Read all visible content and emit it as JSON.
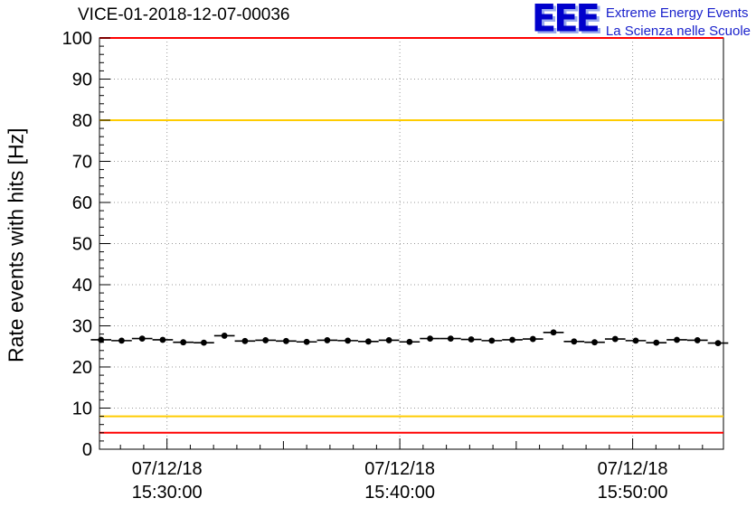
{
  "header": {
    "title": "VICE-01-2018-12-07-00036"
  },
  "logo": {
    "acronym": "EEE",
    "line1": "Extreme Energy Events",
    "line2": "La Scienza nelle Scuole",
    "color": "#0000cc"
  },
  "chart_data": {
    "type": "scatter",
    "title": "VICE-01-2018-12-07-00036",
    "xlabel": "",
    "ylabel": "Rate events with hits [Hz]",
    "ylim": [
      0,
      100
    ],
    "y_major_step": 10,
    "y_minor_step": 2,
    "grid": true,
    "xlim": [
      "15:27:06",
      "15:53:54"
    ],
    "x_ticks": [
      {
        "date": "07/12/18",
        "time": "15:30:00"
      },
      {
        "date": "07/12/18",
        "time": "15:40:00"
      },
      {
        "date": "07/12/18",
        "time": "15:50:00"
      }
    ],
    "threshold_lines": [
      {
        "y": 100,
        "color": "#ff0000"
      },
      {
        "y": 80,
        "color": "#ffcc00"
      },
      {
        "y": 8,
        "color": "#ffcc00"
      },
      {
        "y": 4,
        "color": "#ff0000"
      }
    ],
    "series": [
      {
        "name": "rate-events-with-hits",
        "marker": "circle",
        "color": "#000000",
        "x_error_minutes": 0.44,
        "points": [
          {
            "time": "15:27:10",
            "rate": 26.6
          },
          {
            "time": "15:28:03",
            "rate": 26.4
          },
          {
            "time": "15:28:56",
            "rate": 26.9
          },
          {
            "time": "15:29:49",
            "rate": 26.6
          },
          {
            "time": "15:30:42",
            "rate": 26.0
          },
          {
            "time": "15:31:35",
            "rate": 25.9
          },
          {
            "time": "15:32:28",
            "rate": 27.6
          },
          {
            "time": "15:33:21",
            "rate": 26.3
          },
          {
            "time": "15:34:14",
            "rate": 26.5
          },
          {
            "time": "15:35:07",
            "rate": 26.3
          },
          {
            "time": "15:36:00",
            "rate": 26.1
          },
          {
            "time": "15:36:53",
            "rate": 26.5
          },
          {
            "time": "15:37:46",
            "rate": 26.4
          },
          {
            "time": "15:38:39",
            "rate": 26.2
          },
          {
            "time": "15:39:32",
            "rate": 26.5
          },
          {
            "time": "15:40:25",
            "rate": 26.1
          },
          {
            "time": "15:41:18",
            "rate": 26.9
          },
          {
            "time": "15:42:11",
            "rate": 26.9
          },
          {
            "time": "15:43:04",
            "rate": 26.7
          },
          {
            "time": "15:43:57",
            "rate": 26.4
          },
          {
            "time": "15:44:50",
            "rate": 26.6
          },
          {
            "time": "15:45:43",
            "rate": 26.8
          },
          {
            "time": "15:46:36",
            "rate": 28.4
          },
          {
            "time": "15:47:29",
            "rate": 26.2
          },
          {
            "time": "15:48:22",
            "rate": 26.0
          },
          {
            "time": "15:49:15",
            "rate": 26.8
          },
          {
            "time": "15:50:08",
            "rate": 26.4
          },
          {
            "time": "15:51:01",
            "rate": 25.9
          },
          {
            "time": "15:51:54",
            "rate": 26.6
          },
          {
            "time": "15:52:47",
            "rate": 26.5
          },
          {
            "time": "15:53:40",
            "rate": 25.8
          }
        ]
      }
    ]
  }
}
